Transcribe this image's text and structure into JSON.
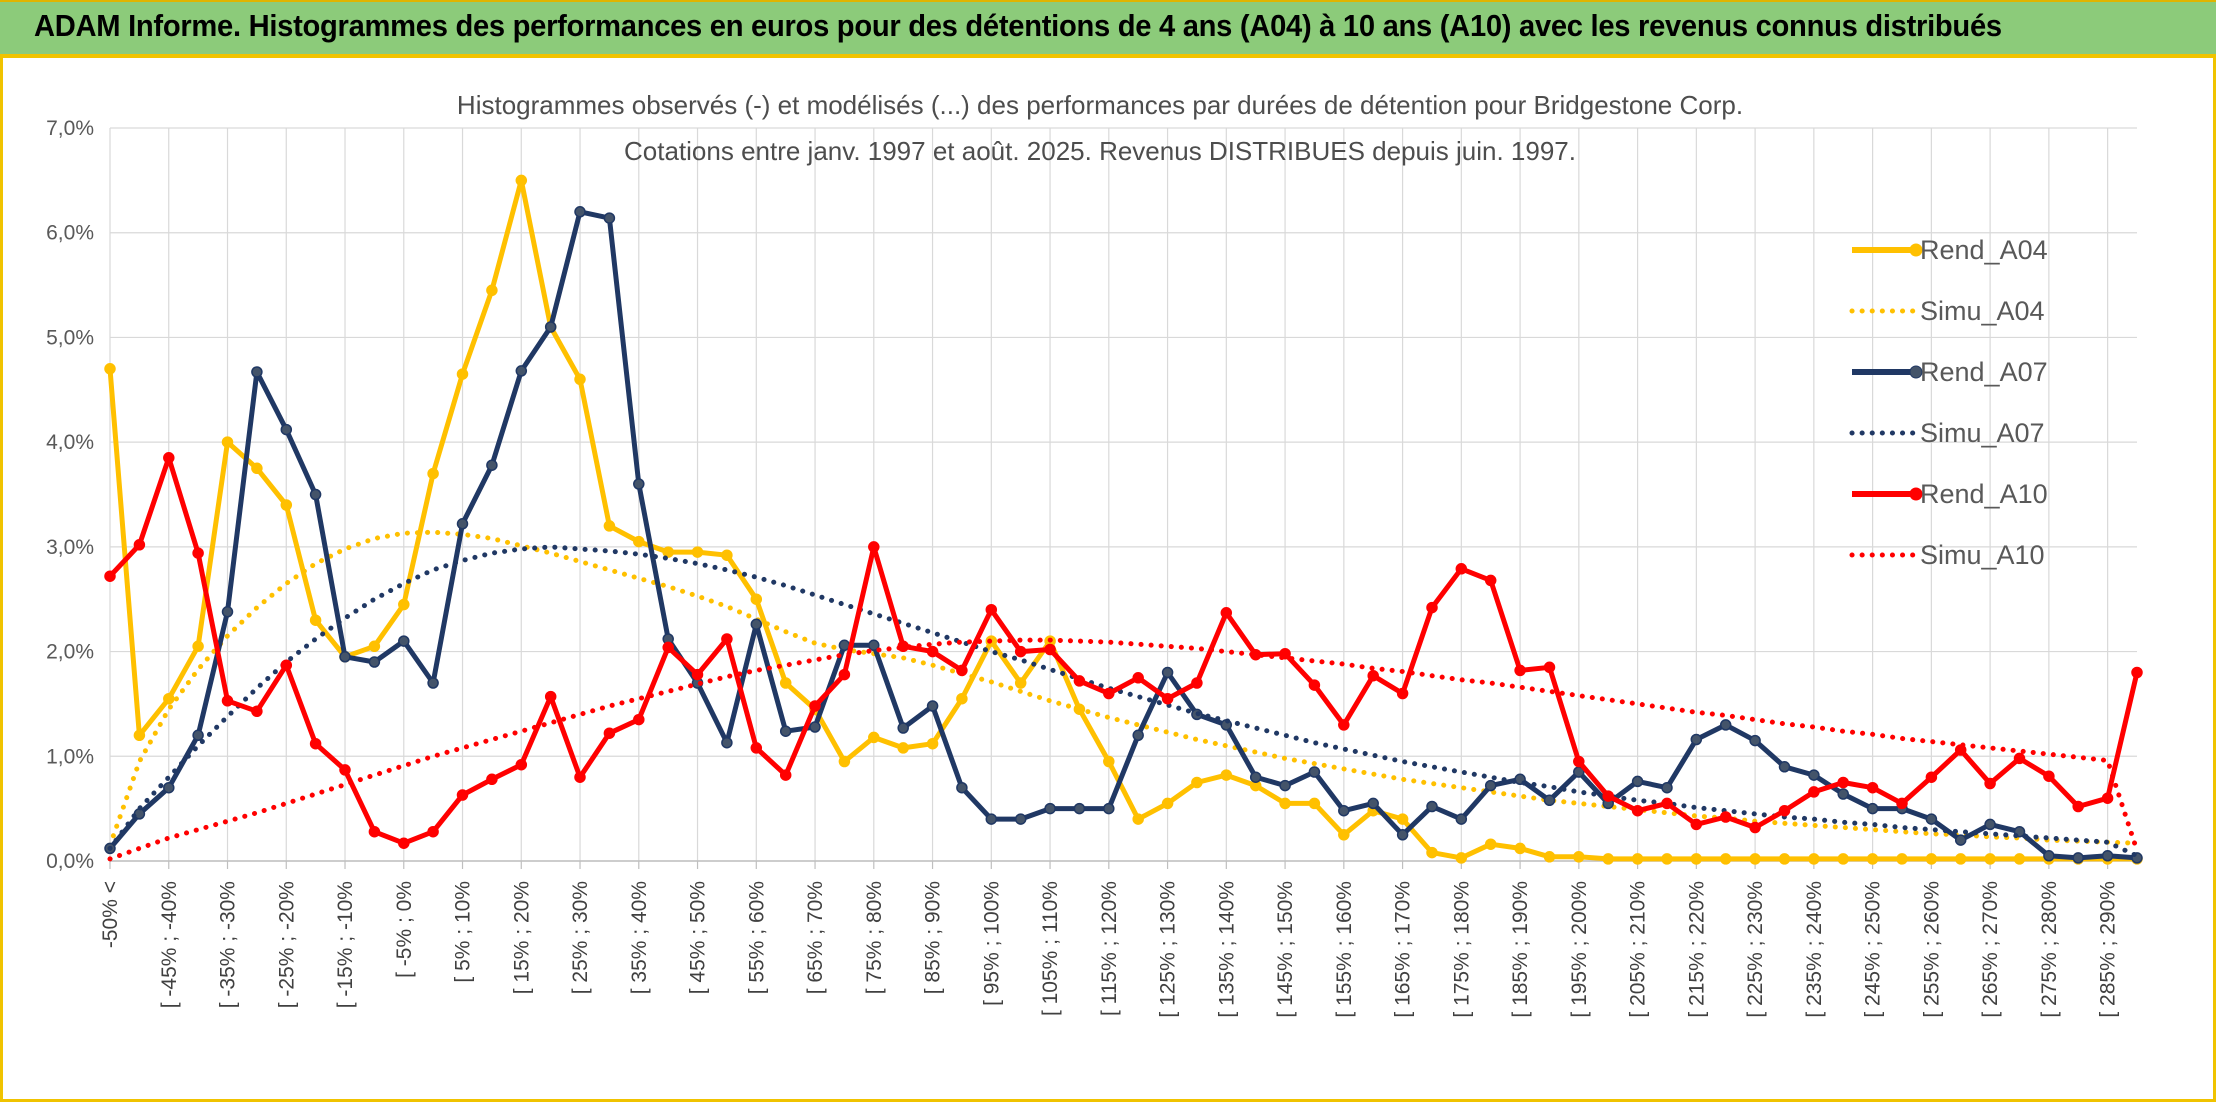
{
  "header": {
    "title": "ADAM Informe. Histogrammes des performances en euros pour des détentions de 4 ans (A04) à 10 ans (A10) avec les revenus connus distribués"
  },
  "chart_data": {
    "type": "line",
    "title": "Histogrammes observés (-) et modélisés (...) des performances par durées de détention pour Bridgestone Corp.",
    "subtitle": "Cotations entre janv. 1997 et août. 2025. Revenus DISTRIBUES depuis juin. 1997.",
    "ylim": [
      0,
      7
    ],
    "y_ticks": [
      "0,0%",
      "1,0%",
      "2,0%",
      "3,0%",
      "4,0%",
      "5,0%",
      "6,0%",
      "7,0%"
    ],
    "x_labels": [
      "-50% <",
      "[ -45% ; -40%",
      "[ -35% ; -30%",
      "[ -25% ; -20%",
      "[ -15% ; -10%",
      "[ -5% ; 0%",
      "[ 5% ; 10%",
      "[ 15% ; 20%",
      "[ 25% ; 30%",
      "[ 35% ; 40%",
      "[ 45% ; 50%",
      "[ 55% ; 60%",
      "[ 65% ; 70%",
      "[ 75% ; 80%",
      "[ 85% ; 90%",
      "[ 95% ; 100%",
      "[ 105% ; 110%",
      "[ 115% ; 120%",
      "[ 125% ; 130%",
      "[ 135% ; 140%",
      "[ 145% ; 150%",
      "[ 155% ; 160%",
      "[ 165% ; 170%",
      "[ 175% ; 180%",
      "[ 185% ; 190%",
      "[ 195% ; 200%",
      "[ 205% ; 210%",
      "[ 215% ; 220%",
      "[ 225% ; 230%",
      "[ 235% ; 240%",
      "[ 245% ; 250%",
      "[ 255% ; 260%",
      "[ 265% ; 270%",
      "[ 275% ; 280%",
      "[ 285% ; 290%"
    ],
    "grid": true,
    "legend_position": "right",
    "series": [
      {
        "name": "Rend_A04",
        "style": "solid",
        "color": "#ffc000",
        "values": [
          4.7,
          1.2,
          1.55,
          2.05,
          4.0,
          3.75,
          3.4,
          2.3,
          1.95,
          2.05,
          2.45,
          3.7,
          4.65,
          5.45,
          6.5,
          5.1,
          4.6,
          3.2,
          3.05,
          2.95,
          2.95,
          2.92,
          2.5,
          1.7,
          1.45,
          0.95,
          1.18,
          1.08,
          1.12,
          1.55,
          2.1,
          1.7,
          2.1,
          1.45,
          0.95,
          0.4,
          0.55,
          0.75,
          0.82,
          0.72,
          0.55,
          0.55,
          0.25,
          0.48,
          0.4,
          0.08,
          0.03,
          0.16,
          0.12,
          0.04,
          0.04,
          0.02,
          0.02,
          0.02,
          0.02,
          0.02,
          0.02,
          0.02,
          0.02,
          0.02,
          0.02,
          0.02,
          0.02,
          0.02,
          0.02,
          0.02,
          0.02,
          0.02,
          0.02,
          0.02
        ]
      },
      {
        "name": "Simu_A04",
        "style": "dotted",
        "color": "#ffc000",
        "values": [
          0.15,
          0.95,
          1.45,
          1.83,
          2.15,
          2.42,
          2.65,
          2.84,
          2.98,
          3.08,
          3.13,
          3.14,
          3.12,
          3.08,
          3.01,
          2.94,
          2.86,
          2.78,
          2.7,
          2.62,
          2.53,
          2.43,
          2.31,
          2.19,
          2.08,
          2.02,
          1.98,
          1.94,
          1.87,
          1.79,
          1.71,
          1.62,
          1.53,
          1.45,
          1.37,
          1.3,
          1.23,
          1.16,
          1.1,
          1.04,
          0.98,
          0.93,
          0.88,
          0.83,
          0.78,
          0.74,
          0.7,
          0.66,
          0.62,
          0.58,
          0.55,
          0.52,
          0.49,
          0.46,
          0.43,
          0.41,
          0.38,
          0.36,
          0.34,
          0.32,
          0.3,
          0.28,
          0.26,
          0.25,
          0.23,
          0.22,
          0.2,
          0.19,
          0.18,
          0.17
        ]
      },
      {
        "name": "Rend_A07",
        "style": "solid",
        "color": "#203864",
        "values": [
          0.12,
          0.45,
          0.7,
          1.2,
          2.38,
          4.67,
          4.12,
          3.5,
          1.95,
          1.9,
          2.1,
          1.7,
          3.22,
          3.78,
          4.68,
          5.1,
          6.2,
          6.14,
          3.6,
          2.12,
          1.7,
          1.13,
          2.26,
          1.24,
          1.28,
          2.06,
          2.06,
          1.27,
          1.48,
          0.7,
          0.4,
          0.4,
          0.5,
          0.5,
          0.5,
          1.2,
          1.8,
          1.4,
          1.3,
          0.8,
          0.72,
          0.85,
          0.48,
          0.55,
          0.25,
          0.52,
          0.4,
          0.72,
          0.78,
          0.58,
          0.85,
          0.55,
          0.76,
          0.7,
          1.16,
          1.3,
          1.15,
          0.9,
          0.82,
          0.64,
          0.5,
          0.5,
          0.4,
          0.2,
          0.35,
          0.28,
          0.05,
          0.03,
          0.05,
          0.03
        ]
      },
      {
        "name": "Simu_A07",
        "style": "dotted",
        "color": "#203864",
        "values": [
          0.12,
          0.5,
          0.8,
          1.1,
          1.38,
          1.65,
          1.9,
          2.12,
          2.32,
          2.5,
          2.65,
          2.78,
          2.87,
          2.94,
          2.98,
          3.0,
          2.98,
          2.96,
          2.93,
          2.89,
          2.84,
          2.78,
          2.71,
          2.63,
          2.54,
          2.45,
          2.36,
          2.27,
          2.18,
          2.09,
          2.0,
          1.92,
          1.83,
          1.74,
          1.65,
          1.57,
          1.49,
          1.41,
          1.34,
          1.27,
          1.2,
          1.13,
          1.07,
          1.01,
          0.95,
          0.9,
          0.85,
          0.8,
          0.75,
          0.71,
          0.66,
          0.62,
          0.58,
          0.55,
          0.51,
          0.48,
          0.45,
          0.42,
          0.4,
          0.37,
          0.35,
          0.32,
          0.3,
          0.28,
          0.26,
          0.24,
          0.22,
          0.2,
          0.18,
          0.05
        ]
      },
      {
        "name": "Rend_A10",
        "style": "solid",
        "color": "#ff0000",
        "values": [
          2.72,
          3.02,
          3.85,
          2.94,
          1.53,
          1.43,
          1.87,
          1.12,
          0.87,
          0.28,
          0.17,
          0.28,
          0.63,
          0.78,
          0.92,
          1.57,
          0.8,
          1.22,
          1.35,
          2.04,
          1.78,
          2.12,
          1.08,
          0.82,
          1.48,
          1.78,
          3.0,
          2.05,
          2.0,
          1.82,
          2.4,
          2.0,
          2.02,
          1.72,
          1.6,
          1.75,
          1.55,
          1.7,
          2.37,
          1.97,
          1.98,
          1.68,
          1.3,
          1.77,
          1.6,
          2.42,
          2.79,
          2.68,
          1.82,
          1.85,
          0.95,
          0.62,
          0.48,
          0.55,
          0.35,
          0.42,
          0.32,
          0.48,
          0.66,
          0.75,
          0.7,
          0.55,
          0.8,
          1.06,
          0.74,
          0.98,
          0.81,
          0.52,
          0.6,
          1.8
        ]
      },
      {
        "name": "Simu_A10",
        "style": "dotted",
        "color": "#ff0000",
        "values": [
          0.02,
          0.12,
          0.22,
          0.3,
          0.38,
          0.46,
          0.55,
          0.64,
          0.73,
          0.82,
          0.91,
          1.0,
          1.08,
          1.16,
          1.24,
          1.32,
          1.4,
          1.48,
          1.55,
          1.62,
          1.69,
          1.76,
          1.82,
          1.87,
          1.92,
          1.97,
          2.01,
          2.04,
          2.07,
          2.09,
          2.1,
          2.11,
          2.11,
          2.1,
          2.09,
          2.07,
          2.05,
          2.03,
          2.0,
          1.97,
          1.94,
          1.91,
          1.88,
          1.84,
          1.81,
          1.77,
          1.73,
          1.7,
          1.66,
          1.62,
          1.58,
          1.54,
          1.5,
          1.46,
          1.42,
          1.39,
          1.35,
          1.31,
          1.28,
          1.24,
          1.21,
          1.17,
          1.14,
          1.11,
          1.08,
          1.05,
          1.02,
          0.99,
          0.96,
          0.1
        ]
      }
    ]
  }
}
